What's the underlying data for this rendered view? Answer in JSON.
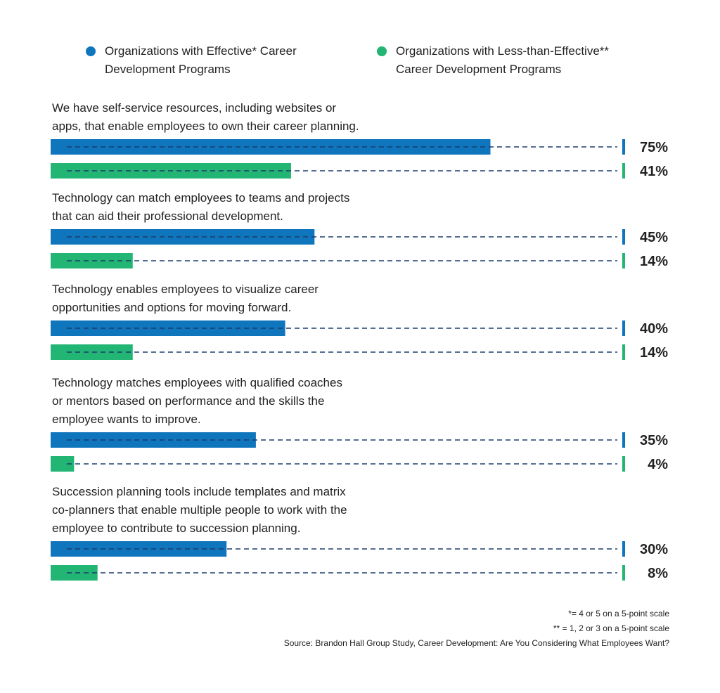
{
  "chart_data": {
    "type": "bar",
    "orientation": "horizontal",
    "xlim": [
      0,
      100
    ],
    "value_suffix": "%",
    "colors": {
      "effective": "#0f75bd",
      "less_effective": "#22b573",
      "dash": "#1c3d6e"
    },
    "legend": [
      {
        "label": "Organizations with Effective* Career\nDevelopment Programs",
        "color": "#0f75bd"
      },
      {
        "label": "Organizations with Less-than-Effective**\nCareer Development Programs",
        "color": "#22b573"
      }
    ],
    "categories": [
      "We have self-service resources, including websites or\napps, that enable employees to own their career planning.",
      "Technology can match employees to teams and projects\nthat can aid their professional development.",
      "Technology enables employees to visualize career\nopportunities and options for moving forward.",
      "Technology matches employees with qualified coaches\nor mentors based on performance and the skills the\nemployee wants to improve.",
      "Succession planning tools include templates and matrix\nco-planners that enable multiple people to work with the\nemployee to contribute to succession planning."
    ],
    "series": [
      {
        "name": "Organizations with Effective* Career Development Programs",
        "values": [
          75,
          45,
          40,
          35,
          30
        ]
      },
      {
        "name": "Organizations with Less-than-Effective** Career Development Programs",
        "values": [
          41,
          14,
          14,
          4,
          8
        ]
      }
    ],
    "data_labels": [
      [
        "75%",
        "45%",
        "40%",
        "35%",
        "30%"
      ],
      [
        "41%",
        "14%",
        "14%",
        "4%",
        "8%"
      ]
    ]
  },
  "footnotes": {
    "effective": "*= 4 or 5 on a 5-point scale",
    "less_effective": "** = 1, 2 or 3 on a 5-point scale",
    "source": "Source: Brandon Hall Group Study, Career Development: Are You Considering What Employees Want?"
  }
}
